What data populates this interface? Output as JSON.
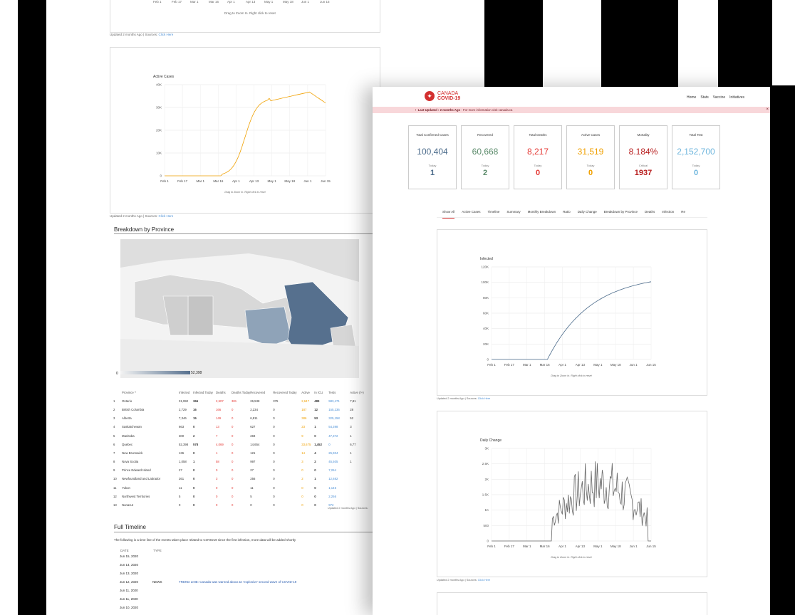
{
  "back": {
    "chart1_xlabels": [
      "Feb 1",
      "Feb 17",
      "Mar 1",
      "Mar 16",
      "Apr 1",
      "Apr 13",
      "May 1",
      "May 18",
      "Jun 1",
      "Jun 15"
    ],
    "drag_hint": "Drag to Zoom In. Right click to reset",
    "updated_note": "Updated 2 months Ago | Sources:",
    "click_here": "Click Here",
    "active_chart": {
      "title": "Active Cases",
      "yticks": [
        "40K",
        "30K",
        "20K",
        "10K",
        "0"
      ],
      "xlabels": [
        "Feb 1",
        "Feb 17",
        "Mar 1",
        "Mar 16",
        "Apr 1",
        "Apr 13",
        "May 1",
        "May 18",
        "Jun 1",
        "Jun 15"
      ]
    },
    "province_title": "Breakdown by Province",
    "legend_min": "0",
    "legend_max": "52,398",
    "table": {
      "headers": [
        "",
        "Province ^",
        "Infected",
        "Infected Today",
        "Deaths",
        "Deaths Today",
        "Recovered",
        "Recovered Today",
        "Active",
        "In ICU",
        "Tests",
        "Active (/+)"
      ],
      "rows": [
        [
          "1",
          "Ontario",
          "31,992",
          "366",
          "2,507",
          "381",
          "26,538",
          "375",
          "2,647",
          "489",
          "983,471",
          "7,81"
        ],
        [
          "2",
          "British Columbia",
          "2,729",
          "16",
          "166",
          "0",
          "2,234",
          "0",
          "187",
          "12",
          "155,236",
          "28"
        ],
        [
          "3",
          "Alberta",
          "7,346",
          "15",
          "149",
          "0",
          "6,811",
          "0",
          "386",
          "53",
          "325,158",
          "52"
        ],
        [
          "4",
          "Saskatchewan",
          "663",
          "0",
          "13",
          "0",
          "627",
          "0",
          "23",
          "1",
          "54,398",
          "3"
        ],
        [
          "5",
          "Manitoba",
          "300",
          "2",
          "7",
          "0",
          "284",
          "0",
          "9",
          "0",
          "47,372",
          "1"
        ],
        [
          "6",
          "Quebec",
          "52,398",
          "578",
          "4,069",
          "0",
          "14,654",
          "0",
          "33,675",
          "1,452",
          "0",
          "6,77"
        ],
        [
          "7",
          "New Brunswick",
          "136",
          "0",
          "1",
          "0",
          "121",
          "0",
          "14",
          "4",
          "25,904",
          "1"
        ],
        [
          "8",
          "Nova Scotia",
          "1,058",
          "1",
          "58",
          "0",
          "997",
          "0",
          "3",
          "2",
          "45,505",
          "1"
        ],
        [
          "9",
          "Prince Edward Island",
          "27",
          "0",
          "0",
          "0",
          "27",
          "0",
          "0",
          "0",
          "7,264",
          ""
        ],
        [
          "10",
          "Newfoundland and Labrador",
          "261",
          "0",
          "3",
          "0",
          "256",
          "0",
          "2",
          "1",
          "12,682",
          ""
        ],
        [
          "11",
          "Yukon",
          "11",
          "0",
          "0",
          "0",
          "11",
          "0",
          "0",
          "0",
          "1,145",
          ""
        ],
        [
          "12",
          "Northwest Territories",
          "5",
          "0",
          "0",
          "0",
          "5",
          "0",
          "0",
          "0",
          "2,256",
          ""
        ],
        [
          "13",
          "Nunavut",
          "0",
          "0",
          "0",
          "0",
          "0",
          "0",
          "0",
          "0",
          "972",
          ""
        ]
      ]
    },
    "table_updated": "Updated 2 months Ago | Sources:",
    "timeline_title": "Full Timeline",
    "timeline_desc": "The following is a time line of the events taken place related to COVID19 since the first infection, more data will be added shortly",
    "timeline_headers": [
      "DATE",
      "TYPE"
    ],
    "timeline": [
      {
        "date": "Jun 15, 2020",
        "type": "",
        "text": ""
      },
      {
        "date": "Jun 14, 2020",
        "type": "",
        "text": ""
      },
      {
        "date": "Jun 13, 2020",
        "type": "",
        "text": ""
      },
      {
        "date": "Jun 12, 2020",
        "type": "NEWS",
        "text": "TREND LINE: Canada was warned about an 'explosive' second wave of COVID-19"
      },
      {
        "date": "Jun 11, 2020",
        "type": "",
        "text": ""
      },
      {
        "date": "Jun 11, 2020",
        "type": "",
        "text": ""
      },
      {
        "date": "Jun 10, 2020",
        "type": "",
        "text": ""
      }
    ]
  },
  "front": {
    "logo_line1": "CANADA",
    "logo_line2": "COVID-19",
    "nav": [
      "Home",
      "Stats",
      "Vaccine",
      "Initiatives"
    ],
    "alert_bold": "Last Updated : 2 months Ago",
    "alert_text": " - For more information visit canada.ca",
    "alert_close": "×",
    "stats": [
      {
        "title": "Total Confirmed Cases",
        "value": "100,404",
        "sub": "Today",
        "delta": "1",
        "color": "#4a6a8a",
        "dcolor": "#4a6a8a"
      },
      {
        "title": "Recovered",
        "value": "60,668",
        "sub": "Today",
        "delta": "2",
        "color": "#5a8a6a",
        "dcolor": "#5a8a6a"
      },
      {
        "title": "Total Deaths",
        "value": "8,217",
        "sub": "Today",
        "delta": "0",
        "color": "#e53935",
        "dcolor": "#e53935"
      },
      {
        "title": "Active Cases",
        "value": "31,519",
        "sub": "Today",
        "delta": "0",
        "color": "#f0a000",
        "dcolor": "#f0a000"
      },
      {
        "title": "Mortality",
        "value": "8.184%",
        "sub": "Critical",
        "delta": "1937",
        "color": "#b71c1c",
        "dcolor": "#b71c1c"
      },
      {
        "title": "Total Test",
        "value": "2,152,700",
        "sub": "Today",
        "delta": "0",
        "color": "#6fb6dd",
        "dcolor": "#6fb6dd"
      }
    ],
    "tabs": [
      "Show All",
      "Active Cases",
      "Timeline",
      "Summary",
      "Monthly Breakdown",
      "Ratio",
      "Daily Change",
      "Breakdown by Province",
      "Deaths",
      "Infection",
      "Re"
    ],
    "infected_chart": {
      "title": "Infected",
      "yticks": [
        "120K",
        "100K",
        "80K",
        "60K",
        "40K",
        "20K",
        "0"
      ],
      "xlabels": [
        "Feb 1",
        "Feb 17",
        "Mar 1",
        "Mar 16",
        "Apr 1",
        "Apr 13",
        "May 1",
        "May 18",
        "Jun 1",
        "Jun 15"
      ]
    },
    "daily_chart": {
      "title": "Daily Change",
      "yticks": [
        "3K",
        "2.5K",
        "2K",
        "1.5K",
        "1K",
        "500",
        "0"
      ],
      "xlabels": [
        "Feb 1",
        "Feb 17",
        "Mar 1",
        "Mar 16",
        "Apr 1",
        "Apr 13",
        "May 1",
        "May 18",
        "Jun 1",
        "Jun 15"
      ]
    },
    "drag_hint": "Drag to Zoom In. Right click to reset",
    "updated_note": "Updated 2 months Ago | Sources:",
    "click_here": "Click Here"
  }
}
